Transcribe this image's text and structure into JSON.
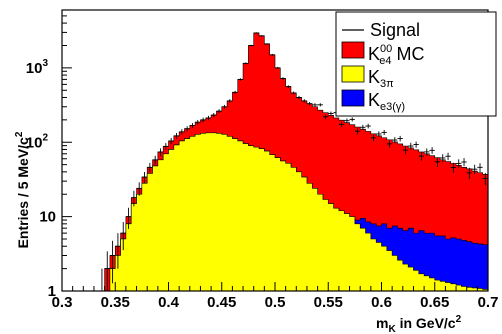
{
  "chart_data": {
    "type": "area",
    "title": "",
    "xlabel": "m_K in GeV/c^2",
    "ylabel": "Entries / 5 MeV/c^2",
    "xlim": [
      0.3,
      0.7
    ],
    "ylim": [
      1,
      6000
    ],
    "y_scale": "log",
    "x_ticks": [
      "0.3",
      "0.35",
      "0.4",
      "0.45",
      "0.5",
      "0.55",
      "0.6",
      "0.65",
      "0.7"
    ],
    "y_ticks": [
      "1",
      "10",
      "10^2",
      "10^3"
    ],
    "grid": false,
    "legend_position": "top-right",
    "bin_width": 0.005,
    "x": [
      0.3025,
      0.3075,
      0.3125,
      0.3175,
      0.3225,
      0.3275,
      0.3325,
      0.3375,
      0.3425,
      0.3475,
      0.3525,
      0.3575,
      0.3625,
      0.3675,
      0.3725,
      0.3775,
      0.3825,
      0.3875,
      0.3925,
      0.3975,
      0.4025,
      0.4075,
      0.4125,
      0.4175,
      0.4225,
      0.4275,
      0.4325,
      0.4375,
      0.4425,
      0.4475,
      0.4525,
      0.4575,
      0.4625,
      0.4675,
      0.4725,
      0.4775,
      0.4825,
      0.4875,
      0.4925,
      0.4975,
      0.5025,
      0.5075,
      0.5125,
      0.5175,
      0.5225,
      0.5275,
      0.5325,
      0.5375,
      0.5425,
      0.5475,
      0.5525,
      0.5575,
      0.5625,
      0.5675,
      0.5725,
      0.5775,
      0.5825,
      0.5875,
      0.5925,
      0.5975,
      0.6025,
      0.6075,
      0.6125,
      0.6175,
      0.6225,
      0.6275,
      0.6325,
      0.6375,
      0.6425,
      0.6475,
      0.6525,
      0.6575,
      0.6625,
      0.6675,
      0.6725,
      0.6775,
      0.6825,
      0.6875,
      0.6925,
      0.6975
    ],
    "series": [
      {
        "name": "Signal",
        "style": "points",
        "values": [
          0,
          0,
          0,
          0,
          0,
          0,
          0,
          1,
          2,
          3,
          4,
          6,
          10,
          18,
          24,
          34,
          46,
          58,
          74,
          88,
          104,
          122,
          138,
          152,
          168,
          186,
          200,
          212,
          232,
          262,
          300,
          360,
          470,
          700,
          1150,
          2000,
          2950,
          2700,
          2100,
          1500,
          1000,
          720,
          560,
          460,
          400,
          360,
          330,
          300,
          270,
          250,
          230,
          212,
          198,
          184,
          172,
          160,
          150,
          140,
          130,
          122,
          115,
          108,
          101,
          95,
          89,
          84,
          79,
          74,
          70,
          66,
          62,
          58,
          55,
          52,
          49,
          46,
          44,
          41,
          39,
          37
        ]
      },
      {
        "name": "Ke4^00 MC",
        "style": "stack-total",
        "values": [
          0,
          0,
          0,
          0,
          0,
          0,
          0,
          1,
          2,
          3,
          4,
          6,
          10,
          18,
          24,
          34,
          46,
          58,
          74,
          88,
          104,
          122,
          138,
          152,
          168,
          186,
          200,
          212,
          232,
          262,
          300,
          360,
          470,
          700,
          1150,
          2000,
          2950,
          2700,
          2100,
          1500,
          1000,
          720,
          560,
          460,
          400,
          360,
          330,
          300,
          270,
          250,
          230,
          212,
          198,
          184,
          172,
          160,
          150,
          140,
          130,
          122,
          115,
          108,
          101,
          95,
          89,
          84,
          79,
          74,
          70,
          66,
          62,
          58,
          55,
          52,
          49,
          46,
          44,
          41,
          39,
          37
        ]
      },
      {
        "name": "Ke3(γ)",
        "style": "stack-mid",
        "values": [
          0,
          0,
          0,
          0,
          0,
          0,
          0,
          1,
          1,
          2,
          3,
          5,
          8,
          15,
          20,
          28,
          38,
          48,
          58,
          70,
          80,
          92,
          104,
          112,
          120,
          128,
          132,
          134,
          134,
          132,
          128,
          120,
          112,
          104,
          96,
          90,
          86,
          82,
          76,
          68,
          62,
          56,
          52,
          46,
          40,
          34,
          28,
          24,
          20,
          17,
          15,
          13,
          12,
          11,
          10,
          9,
          9.5,
          8.5,
          8,
          7.5,
          8,
          7,
          7.5,
          7,
          6.5,
          7,
          6,
          6.5,
          6,
          6,
          5.5,
          5.5,
          5,
          5.2,
          5,
          4.8,
          4.6,
          4.4,
          4.3,
          4.2
        ]
      },
      {
        "name": "K3π",
        "style": "stack-base",
        "values": [
          0,
          0,
          0,
          0,
          0,
          0,
          0,
          1,
          1,
          2,
          3,
          5,
          8,
          15,
          20,
          28,
          38,
          48,
          58,
          70,
          80,
          92,
          104,
          112,
          120,
          128,
          132,
          134,
          134,
          132,
          128,
          120,
          112,
          104,
          96,
          90,
          86,
          82,
          76,
          68,
          62,
          56,
          52,
          46,
          40,
          34,
          28,
          24,
          20,
          17,
          15,
          13,
          12,
          11,
          10,
          8,
          7,
          6,
          5,
          4.5,
          4,
          3.5,
          3,
          2.6,
          2.3,
          2.1,
          1.9,
          1.7,
          1.6,
          1.5,
          1.4,
          1.35,
          1.3,
          1.25,
          1.2,
          1.15,
          1.12,
          1.1,
          1.08,
          1.05
        ]
      }
    ],
    "colors": {
      "Ke4^00 MC": "#ff0000",
      "K3π": "#ffff00",
      "Ke3(γ)": "#0000ff",
      "Signal": "#000000"
    }
  },
  "axes": {
    "x_title": "m_K in GeV/c^2",
    "y_title": "Entries / 5 MeV/c^2"
  },
  "legend": {
    "position": "top-right",
    "entries": [
      {
        "label": "Signal",
        "sub": "",
        "sup": ""
      },
      {
        "label": "K",
        "sub": "e4",
        "sup": "00",
        "suffix": " MC"
      },
      {
        "label": "K",
        "sub": "3π",
        "sup": ""
      },
      {
        "label": "K",
        "sub": "e3(γ)",
        "sup": ""
      }
    ]
  }
}
